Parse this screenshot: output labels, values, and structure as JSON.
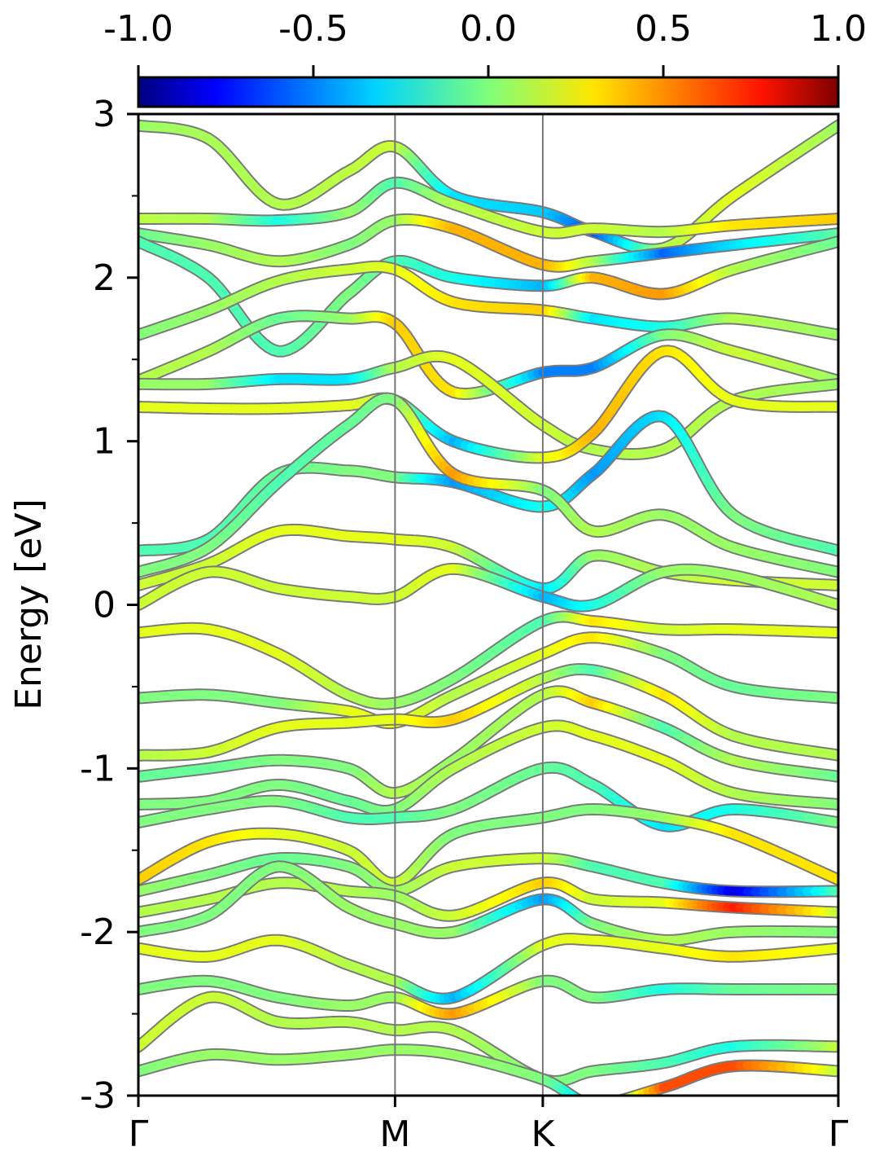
{
  "chart_data": {
    "type": "line",
    "title": "",
    "xlabel": "",
    "ylabel": "Energy [eV]",
    "ylim": [
      -3,
      3
    ],
    "y_ticks": [
      "-3",
      "-2",
      "-1",
      "0",
      "1",
      "2",
      "3"
    ],
    "x_ticks": [
      "Γ",
      "M",
      "K",
      "Γ"
    ],
    "k_path_positions": [
      0,
      0.3667,
      0.5778,
      1.0
    ],
    "colorbar": {
      "range": [
        -1.0,
        1.0
      ],
      "ticks": [
        "-1.0",
        "-0.5",
        "0.0",
        "0.5",
        "1.0"
      ],
      "colormap": "jet"
    },
    "series": [
      {
        "x": [
          0,
          0.1,
          0.2,
          0.3,
          0.3667,
          0.45,
          0.5778,
          0.65,
          0.75,
          0.85,
          1.0
        ],
        "y": [
          2.93,
          2.85,
          2.45,
          2.65,
          2.8,
          2.5,
          2.4,
          2.28,
          2.18,
          2.5,
          2.93
        ],
        "c": [
          0.05,
          0.08,
          0.1,
          0.12,
          0.15,
          -0.3,
          -0.35,
          -0.6,
          0.1,
          0.2,
          0.05
        ]
      },
      {
        "x": [
          0,
          0.1,
          0.2,
          0.3,
          0.3667,
          0.45,
          0.5778,
          0.65,
          0.75,
          0.85,
          1.0
        ],
        "y": [
          2.36,
          2.36,
          2.35,
          2.4,
          2.58,
          2.45,
          2.28,
          2.3,
          2.28,
          2.32,
          2.36
        ],
        "c": [
          0.12,
          0.1,
          -0.2,
          0.05,
          -0.1,
          0.1,
          0.15,
          0.15,
          0.1,
          0.3,
          0.35
        ]
      },
      {
        "x": [
          0,
          0.1,
          0.2,
          0.3,
          0.3667,
          0.45,
          0.5778,
          0.65,
          0.75,
          0.85,
          1.0
        ],
        "y": [
          2.27,
          2.2,
          2.1,
          2.2,
          2.35,
          2.3,
          2.08,
          2.1,
          2.15,
          2.2,
          2.27
        ],
        "c": [
          -0.05,
          0.05,
          0.1,
          0.0,
          0.05,
          0.4,
          0.4,
          0.1,
          -0.55,
          -0.3,
          -0.05
        ]
      },
      {
        "x": [
          0,
          0.1,
          0.2,
          0.3,
          0.3667,
          0.45,
          0.5778,
          0.65,
          0.75,
          0.85,
          1.0
        ],
        "y": [
          2.22,
          2.0,
          1.55,
          1.9,
          2.1,
          2.0,
          1.95,
          2.0,
          1.9,
          2.05,
          2.22
        ],
        "c": [
          -0.1,
          -0.1,
          -0.1,
          0.0,
          -0.1,
          -0.2,
          -0.4,
          0.4,
          0.45,
          0.1,
          -0.05
        ]
      },
      {
        "x": [
          0,
          0.1,
          0.2,
          0.3,
          0.3667,
          0.45,
          0.5778,
          0.65,
          0.75,
          0.85,
          1.0
        ],
        "y": [
          1.65,
          1.8,
          1.98,
          2.05,
          2.05,
          1.85,
          1.8,
          1.75,
          1.7,
          1.75,
          1.65
        ],
        "c": [
          0.0,
          0.05,
          0.1,
          0.15,
          0.2,
          0.3,
          0.35,
          -0.3,
          -0.2,
          0.1,
          0.05
        ]
      },
      {
        "x": [
          0,
          0.1,
          0.2,
          0.3,
          0.3667,
          0.45,
          0.5778,
          0.65,
          0.75,
          0.85,
          1.0
        ],
        "y": [
          1.37,
          1.55,
          1.75,
          1.75,
          1.72,
          1.3,
          1.42,
          1.45,
          1.65,
          1.55,
          1.37
        ],
        "c": [
          0.1,
          0.1,
          -0.05,
          0.05,
          0.35,
          0.3,
          -0.5,
          -0.5,
          0.0,
          0.15,
          0.05
        ]
      },
      {
        "x": [
          0,
          0.1,
          0.2,
          0.3,
          0.3667,
          0.45,
          0.5778,
          0.65,
          0.75,
          0.85,
          1.0
        ],
        "y": [
          1.35,
          1.35,
          1.38,
          1.38,
          1.45,
          1.5,
          1.1,
          0.95,
          0.95,
          1.25,
          1.35
        ],
        "c": [
          0.05,
          0.05,
          -0.3,
          -0.3,
          0.1,
          0.2,
          0.15,
          0.1,
          0.1,
          0.1,
          0.05
        ]
      },
      {
        "x": [
          0,
          0.1,
          0.2,
          0.3,
          0.3667,
          0.45,
          0.5778,
          0.65,
          0.75,
          0.85,
          1.0
        ],
        "y": [
          1.21,
          1.2,
          1.2,
          1.22,
          1.25,
          1.0,
          0.9,
          1.05,
          1.55,
          1.25,
          1.21
        ],
        "c": [
          0.2,
          0.2,
          0.2,
          0.2,
          0.1,
          -0.4,
          0.2,
          0.4,
          0.3,
          0.2,
          0.2
        ]
      },
      {
        "x": [
          0,
          0.1,
          0.2,
          0.3,
          0.3667,
          0.45,
          0.5778,
          0.65,
          0.75,
          0.85,
          1.0
        ],
        "y": [
          0.33,
          0.4,
          0.8,
          0.82,
          0.78,
          0.75,
          0.6,
          0.8,
          1.15,
          0.55,
          0.33
        ],
        "c": [
          -0.1,
          -0.1,
          -0.05,
          0.0,
          0.0,
          -0.45,
          -0.2,
          -0.45,
          -0.3,
          0.0,
          -0.1
        ]
      },
      {
        "x": [
          0,
          0.1,
          0.2,
          0.3,
          0.3667,
          0.45,
          0.5778,
          0.65,
          0.75,
          0.85,
          1.0
        ],
        "y": [
          0.2,
          0.35,
          0.75,
          1.1,
          1.25,
          0.8,
          0.7,
          0.45,
          0.55,
          0.35,
          0.2
        ],
        "c": [
          0.0,
          0.0,
          -0.1,
          -0.05,
          0.0,
          0.45,
          0.0,
          0.1,
          0.05,
          0.05,
          0.0
        ]
      },
      {
        "x": [
          0,
          0.1,
          0.2,
          0.3,
          0.3667,
          0.45,
          0.5778,
          0.65,
          0.75,
          0.85,
          1.0
        ],
        "y": [
          0.12,
          0.25,
          0.45,
          0.42,
          0.4,
          0.35,
          0.1,
          0.3,
          0.2,
          0.15,
          0.12
        ],
        "c": [
          0.15,
          0.15,
          0.2,
          0.2,
          0.2,
          0.15,
          -0.3,
          0.05,
          0.1,
          0.15,
          0.15
        ]
      },
      {
        "x": [
          0,
          0.1,
          0.2,
          0.3,
          0.3667,
          0.45,
          0.5778,
          0.65,
          0.75,
          0.85,
          1.0
        ],
        "y": [
          0.0,
          0.2,
          0.1,
          0.05,
          0.05,
          0.22,
          0.05,
          0.0,
          0.2,
          0.18,
          0.0
        ],
        "c": [
          0.15,
          0.15,
          0.15,
          0.15,
          0.15,
          0.2,
          -0.4,
          -0.2,
          0.05,
          0.05,
          0.1
        ]
      },
      {
        "x": [
          0,
          0.1,
          0.2,
          0.3,
          0.3667,
          0.45,
          0.5778,
          0.65,
          0.75,
          0.85,
          1.0
        ],
        "y": [
          -0.17,
          -0.15,
          -0.3,
          -0.55,
          -0.6,
          -0.45,
          -0.1,
          -0.1,
          -0.15,
          -0.15,
          -0.17
        ],
        "c": [
          0.2,
          0.2,
          0.2,
          0.1,
          0.05,
          0.0,
          -0.1,
          0.3,
          0.15,
          0.2,
          0.2
        ]
      },
      {
        "x": [
          0,
          0.1,
          0.2,
          0.3,
          0.3667,
          0.45,
          0.5778,
          0.65,
          0.75,
          0.85,
          1.0
        ],
        "y": [
          -0.57,
          -0.55,
          -0.6,
          -0.65,
          -0.72,
          -0.55,
          -0.3,
          -0.2,
          -0.3,
          -0.5,
          -0.57
        ],
        "c": [
          0.0,
          0.0,
          0.0,
          0.2,
          0.25,
          0.1,
          0.2,
          0.3,
          0.0,
          -0.05,
          0.0
        ]
      },
      {
        "x": [
          0,
          0.1,
          0.2,
          0.3,
          0.3667,
          0.45,
          0.5778,
          0.65,
          0.75,
          0.85,
          1.0
        ],
        "y": [
          -0.92,
          -0.9,
          -0.75,
          -0.72,
          -0.7,
          -0.7,
          -0.45,
          -0.4,
          -0.55,
          -0.8,
          -0.92
        ],
        "c": [
          0.1,
          0.15,
          0.2,
          0.2,
          0.2,
          0.35,
          0.1,
          -0.1,
          0.3,
          0.1,
          0.1
        ]
      },
      {
        "x": [
          0,
          0.1,
          0.2,
          0.3,
          0.3667,
          0.45,
          0.5778,
          0.65,
          0.75,
          0.85,
          1.0
        ],
        "y": [
          -1.05,
          -1.0,
          -0.95,
          -1.0,
          -1.15,
          -0.95,
          -0.55,
          -0.6,
          -0.75,
          -0.95,
          -1.05
        ],
        "c": [
          -0.05,
          -0.05,
          0.0,
          0.0,
          0.1,
          0.05,
          0.1,
          0.35,
          -0.1,
          0.1,
          -0.05
        ]
      },
      {
        "x": [
          0,
          0.1,
          0.2,
          0.3,
          0.3667,
          0.45,
          0.5778,
          0.65,
          0.75,
          0.85,
          1.0
        ],
        "y": [
          -1.22,
          -1.2,
          -1.1,
          -1.2,
          -1.25,
          -1.0,
          -0.75,
          -0.8,
          -0.95,
          -1.15,
          -1.22
        ],
        "c": [
          0.0,
          0.0,
          0.0,
          -0.05,
          0.0,
          0.1,
          0.15,
          0.2,
          0.2,
          0.1,
          0.0
        ]
      },
      {
        "x": [
          0,
          0.1,
          0.2,
          0.3,
          0.3667,
          0.45,
          0.5778,
          0.65,
          0.75,
          0.85,
          1.0
        ],
        "y": [
          -1.33,
          -1.25,
          -1.2,
          -1.3,
          -1.3,
          -1.25,
          -1.0,
          -1.1,
          -1.35,
          -1.25,
          -1.33
        ],
        "c": [
          0.0,
          0.0,
          0.0,
          -0.1,
          -0.1,
          0.0,
          -0.05,
          -0.1,
          -0.3,
          -0.2,
          0.0
        ]
      },
      {
        "x": [
          0,
          0.1,
          0.2,
          0.3,
          0.3667,
          0.45,
          0.5778,
          0.65,
          0.75,
          0.85,
          1.0
        ],
        "y": [
          -1.68,
          -1.45,
          -1.4,
          -1.5,
          -1.7,
          -1.4,
          -1.3,
          -1.25,
          -1.3,
          -1.4,
          -1.68
        ],
        "c": [
          0.35,
          0.3,
          0.2,
          0.15,
          0.15,
          0.0,
          0.0,
          0.0,
          0.05,
          0.3,
          0.3
        ]
      },
      {
        "x": [
          0,
          0.1,
          0.2,
          0.3,
          0.3667,
          0.45,
          0.5778,
          0.65,
          0.75,
          0.85,
          1.0
        ],
        "y": [
          -1.75,
          -1.65,
          -1.55,
          -1.6,
          -1.75,
          -1.6,
          -1.55,
          -1.6,
          -1.7,
          -1.75,
          -1.75
        ],
        "c": [
          0.05,
          0.0,
          -0.05,
          0.0,
          0.05,
          0.15,
          0.15,
          -0.1,
          -0.1,
          -0.8,
          -0.05
        ]
      },
      {
        "x": [
          0,
          0.1,
          0.2,
          0.3,
          0.3667,
          0.45,
          0.5778,
          0.65,
          0.75,
          0.85,
          1.0
        ],
        "y": [
          -1.88,
          -1.8,
          -1.7,
          -1.75,
          -1.78,
          -1.9,
          -1.7,
          -1.8,
          -1.82,
          -1.85,
          -1.88
        ],
        "c": [
          0.1,
          0.1,
          0.1,
          0.1,
          0.05,
          0.15,
          0.35,
          0.15,
          0.2,
          0.7,
          0.1
        ]
      },
      {
        "x": [
          0,
          0.1,
          0.2,
          0.3,
          0.3667,
          0.45,
          0.5778,
          0.65,
          0.75,
          0.85,
          1.0
        ],
        "y": [
          -2.0,
          -1.9,
          -1.6,
          -1.85,
          -1.95,
          -2.0,
          -1.8,
          -1.95,
          -2.05,
          -2.0,
          -2.0
        ],
        "c": [
          0.0,
          0.0,
          0.0,
          0.05,
          0.05,
          0.05,
          -0.45,
          0.0,
          0.1,
          0.05,
          0.0
        ]
      },
      {
        "x": [
          0,
          0.1,
          0.2,
          0.3,
          0.3667,
          0.45,
          0.5778,
          0.65,
          0.75,
          0.85,
          1.0
        ],
        "y": [
          -2.1,
          -2.15,
          -2.05,
          -2.2,
          -2.3,
          -2.4,
          -2.08,
          -2.05,
          -2.1,
          -2.15,
          -2.1
        ],
        "c": [
          0.2,
          0.2,
          0.2,
          0.1,
          0.1,
          -0.4,
          0.2,
          0.2,
          0.2,
          0.3,
          0.2
        ]
      },
      {
        "x": [
          0,
          0.1,
          0.2,
          0.3,
          0.3667,
          0.45,
          0.5778,
          0.65,
          0.75,
          0.85,
          1.0
        ],
        "y": [
          -2.35,
          -2.3,
          -2.4,
          -2.45,
          -2.4,
          -2.5,
          -2.3,
          -2.4,
          -2.35,
          -2.35,
          -2.35
        ],
        "c": [
          0.0,
          0.0,
          0.0,
          0.05,
          0.05,
          0.45,
          0.0,
          0.0,
          -0.2,
          -0.05,
          0.0
        ]
      },
      {
        "x": [
          0,
          0.1,
          0.2,
          0.3,
          0.3667,
          0.45,
          0.5778,
          0.65,
          0.75,
          0.85,
          1.0
        ],
        "y": [
          -2.7,
          -2.4,
          -2.55,
          -2.55,
          -2.6,
          -2.6,
          -2.9,
          -2.85,
          -2.8,
          -2.7,
          -2.7
        ],
        "c": [
          0.15,
          0.15,
          0.1,
          0.1,
          0.1,
          0.1,
          0.0,
          0.0,
          -0.1,
          -0.2,
          0.15
        ]
      },
      {
        "x": [
          0,
          0.1,
          0.2,
          0.3,
          0.3667,
          0.45,
          0.5778,
          0.65,
          0.75,
          0.85,
          1.0
        ],
        "y": [
          -2.85,
          -2.75,
          -2.78,
          -2.75,
          -2.72,
          -2.75,
          -2.9,
          -3.05,
          -2.95,
          -2.82,
          -2.85
        ],
        "c": [
          0.0,
          0.05,
          0.05,
          0.05,
          0.05,
          0.05,
          0.0,
          -0.4,
          0.6,
          0.6,
          0.1
        ]
      }
    ]
  }
}
